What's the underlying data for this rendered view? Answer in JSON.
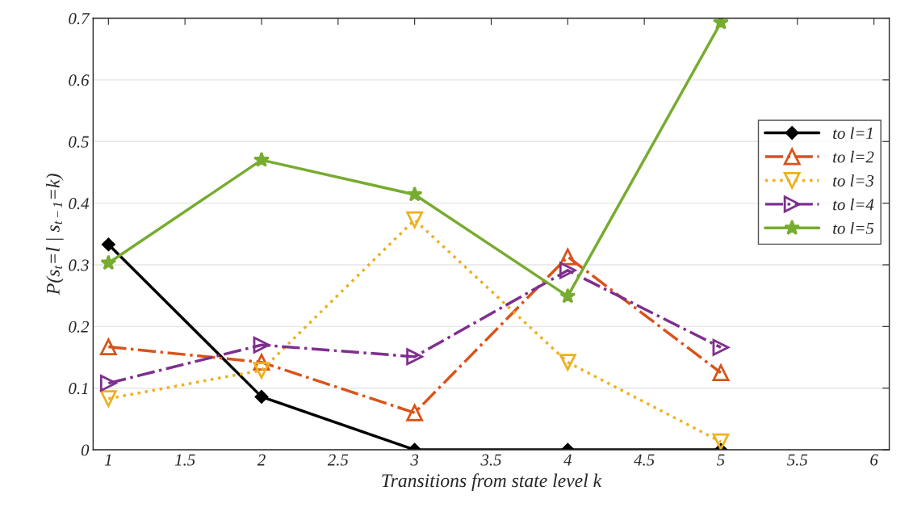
{
  "chart_data": {
    "type": "line",
    "xlabel": "Transitions from state level k",
    "ylabel": "P(s$_{t}$=l | s$_{t−1}$=k)",
    "xlim": [
      0.9,
      6.1
    ],
    "xticks": [
      1,
      1.5,
      2,
      2.5,
      3,
      3.5,
      4,
      4.5,
      5,
      5.5,
      6
    ],
    "ylim": [
      0,
      0.7
    ],
    "yticks": [
      0,
      0.1,
      0.2,
      0.3,
      0.4,
      0.5,
      0.6,
      0.7
    ],
    "grid": "y",
    "legend": "right",
    "series": [
      {
        "name": "to l=1",
        "color": "#000000",
        "marker": "diamond",
        "line_style": "solid",
        "x": [
          1,
          2,
          3,
          4,
          5
        ],
        "values": [
          0.333,
          0.086,
          0,
          0,
          0
        ]
      },
      {
        "name": "to l=2",
        "color": "#d95319",
        "marker": "triangle",
        "line_style": "dashdot",
        "x": [
          1,
          2,
          3,
          4,
          5
        ],
        "values": [
          0.167,
          0.142,
          0.06,
          0.313,
          0.125
        ]
      },
      {
        "name": "to l=3",
        "color": "#edb120",
        "marker": "triangle-down",
        "line_style": "dotted",
        "x": [
          1,
          2,
          3,
          4,
          5
        ],
        "values": [
          0.083,
          0.129,
          0.373,
          0.142,
          0.013
        ]
      },
      {
        "name": "to l=4",
        "color": "#7e2f8e",
        "marker": "triangle-right",
        "line_style": "dashdot",
        "x": [
          1,
          2,
          3,
          4,
          5
        ],
        "values": [
          0.108,
          0.17,
          0.151,
          0.291,
          0.166
        ]
      },
      {
        "name": "to l=5",
        "color": "#77ac30",
        "marker": "star",
        "line_style": "solid",
        "x": [
          1,
          2,
          3,
          4,
          5
        ],
        "values": [
          0.303,
          0.47,
          0.414,
          0.249,
          0.693
        ]
      }
    ]
  }
}
